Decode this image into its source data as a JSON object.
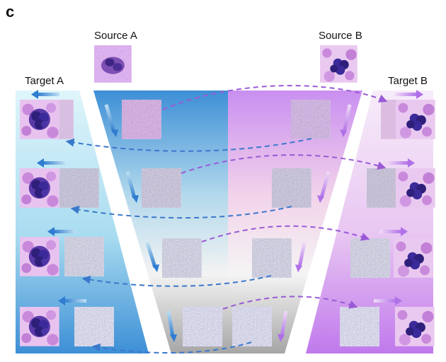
{
  "panel_letter": "c",
  "labels": {
    "source_a": "Source A",
    "source_b": "Source B",
    "target_a": "Target A",
    "target_b": "Target B"
  },
  "colors": {
    "blue": "#3d8fd6",
    "light_blue": "#d3f1fa",
    "purple": "#c98ff0",
    "light_purple": "#f6e7f8",
    "gray": "#a9a9a9",
    "arrow_blue": "#3a78cc",
    "arrow_purple": "#9a5ad6",
    "noise": "#8a8a8a",
    "stain_purple": "#a45cc8",
    "nucleus_blue": "#3b2a9a"
  },
  "stages": 4
}
